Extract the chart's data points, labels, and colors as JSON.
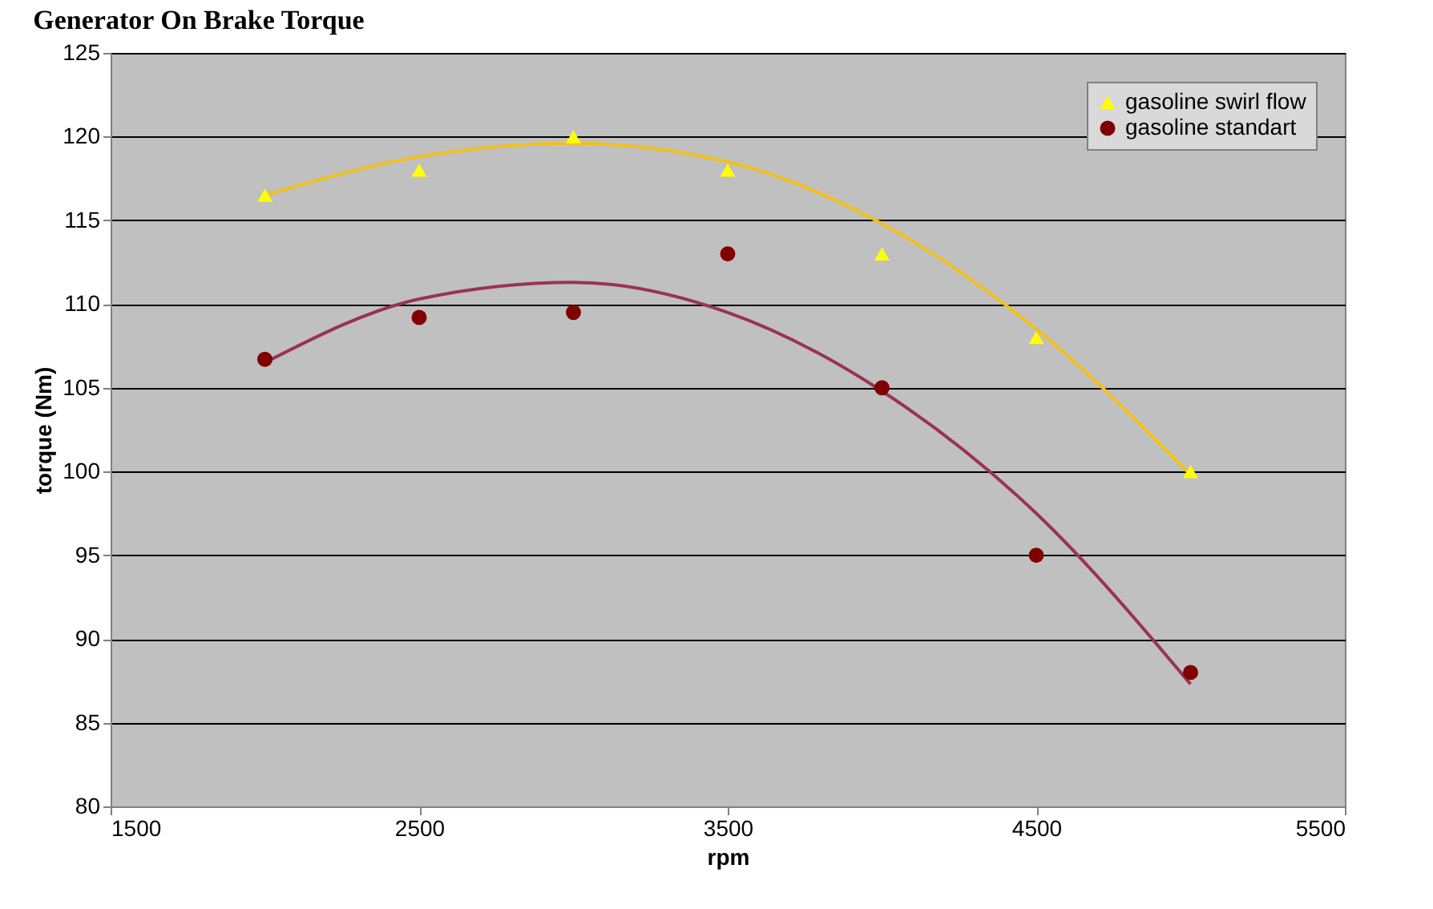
{
  "chart_data": {
    "type": "scatter",
    "title": "Generator On Brake Torque",
    "xlabel": "rpm",
    "ylabel": "torque (Nm)",
    "x": [
      2000,
      2500,
      3000,
      3500,
      4000,
      4500,
      5000
    ],
    "series": [
      {
        "name": "gasoline swirl flow",
        "color": "#ffff00",
        "marker": "triangle",
        "values": [
          116.5,
          118,
          120,
          118,
          113,
          108,
          100
        ]
      },
      {
        "name": "gasoline standart",
        "color": "#800000",
        "marker": "circle",
        "values": [
          106.7,
          109.2,
          109.5,
          113,
          105,
          95,
          88
        ]
      },
      {
        "type": "line",
        "color": "#f0c020",
        "x": [
          2000,
          2500,
          3000,
          3500,
          4000,
          4500,
          5000
        ],
        "values": [
          116.5,
          118.8,
          119.6,
          118.5,
          114.8,
          108.5,
          99.8
        ]
      },
      {
        "type": "line",
        "color": "#993355",
        "x": [
          2000,
          2500,
          3000,
          3500,
          4000,
          4500,
          5000
        ],
        "values": [
          106.5,
          110.3,
          111.3,
          109.5,
          104.8,
          97.5,
          87.3
        ]
      }
    ],
    "xlim": [
      1500,
      5500
    ],
    "xticks": [
      1500,
      2500,
      3500,
      4500,
      5500
    ],
    "ylim": [
      80,
      125
    ],
    "yticks": [
      80,
      85,
      90,
      95,
      100,
      105,
      110,
      115,
      120,
      125
    ],
    "grid": "y",
    "legend": "top right"
  }
}
